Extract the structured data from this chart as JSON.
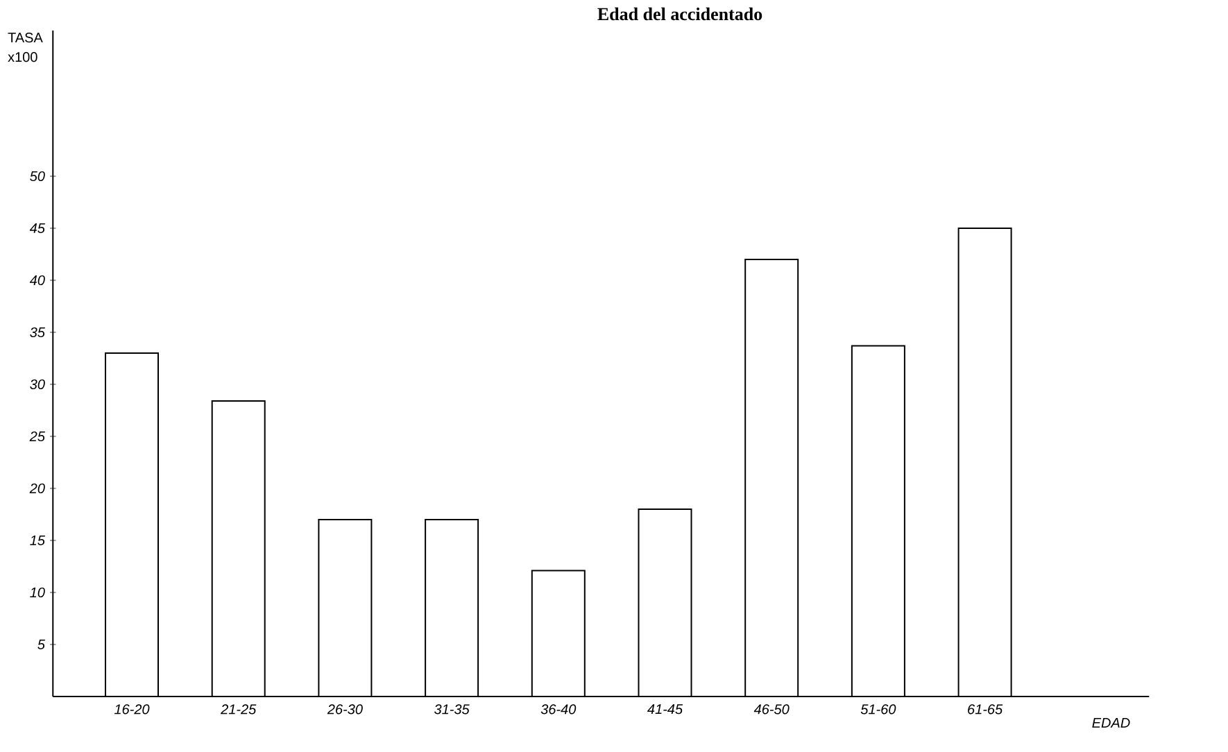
{
  "chart_data": {
    "type": "bar",
    "title": "Edad del accidentado",
    "ylabel": "TASA x100",
    "xlabel": "EDAD",
    "categories": [
      "16-20",
      "21-25",
      "26-30",
      "31-35",
      "36-40",
      "41-45",
      "46-50",
      "51-60",
      "61-65"
    ],
    "values": [
      33,
      28.4,
      17,
      17,
      12.1,
      18,
      42,
      33.7,
      45
    ],
    "color": "#ffffff",
    "ylim": [
      0,
      64
    ],
    "yticks": [
      5,
      10,
      15,
      20,
      25,
      30,
      35,
      40,
      45,
      50
    ],
    "grid": false
  }
}
